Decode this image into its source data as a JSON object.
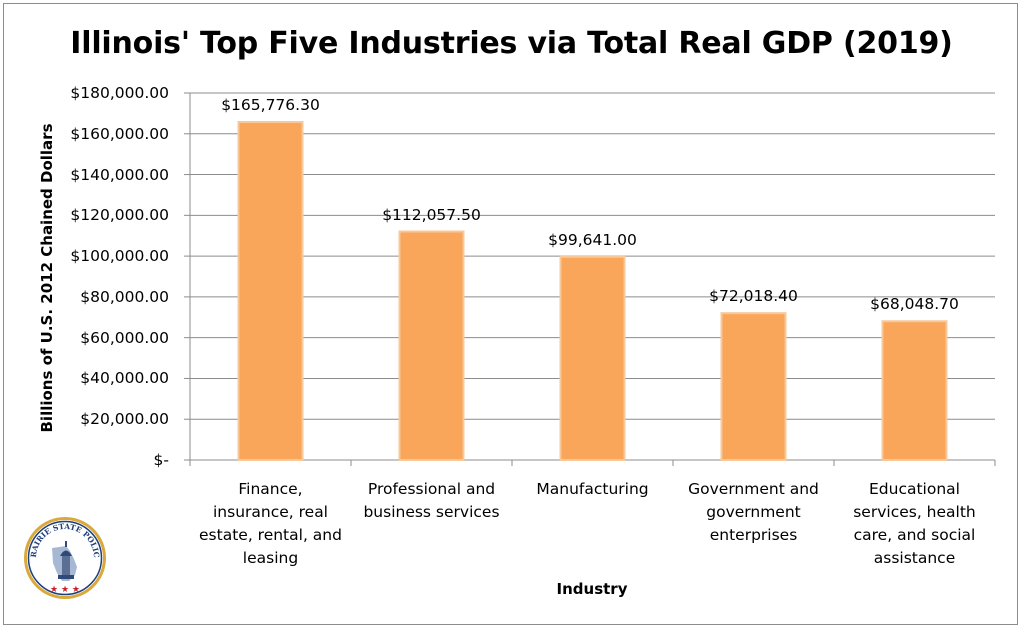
{
  "chart_data": {
    "type": "bar",
    "title": "Illinois' Top Five Industries via Total Real GDP (2019)",
    "xlabel": "Industry",
    "ylabel": "Billions of U.S. 2012 Chained Dollars",
    "ylim": [
      0,
      180000
    ],
    "yticks": [
      0,
      20000,
      40000,
      60000,
      80000,
      100000,
      120000,
      140000,
      160000,
      180000
    ],
    "ytick_labels": [
      "$-",
      "$20,000.00",
      "$40,000.00",
      "$60,000.00",
      "$80,000.00",
      "$100,000.00",
      "$120,000.00",
      "$140,000.00",
      "$160,000.00",
      "$180,000.00"
    ],
    "categories": [
      [
        "Finance,",
        "insurance, real",
        "estate, rental, and",
        "leasing"
      ],
      [
        "Professional and",
        "business services"
      ],
      [
        "Manufacturing"
      ],
      [
        "Government and",
        "government",
        "enterprises"
      ],
      [
        "Educational",
        "services, health",
        "care, and social",
        "assistance"
      ]
    ],
    "values": [
      165776.3,
      112057.5,
      99641.0,
      72018.4,
      68048.7
    ],
    "data_labels": [
      "$165,776.30",
      "$112,057.50",
      "$99,641.00",
      "$72,018.40",
      "$68,048.70"
    ],
    "grid": true,
    "bar_color": "#f9a65a"
  },
  "logo": {
    "text": "PRAIRIE STATE POLICY",
    "icon": "illinois-capitol-seal-icon"
  }
}
